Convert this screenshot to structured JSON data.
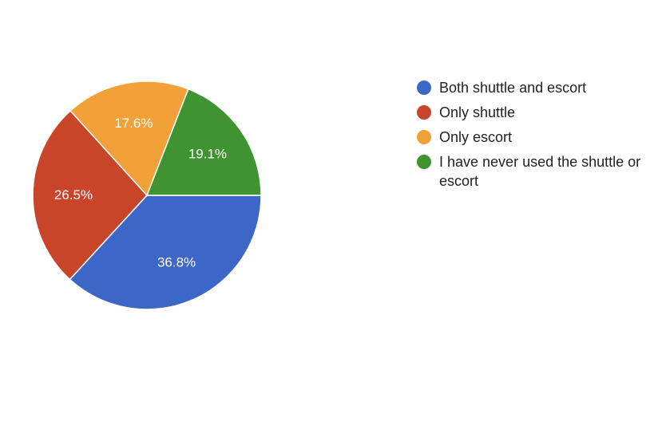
{
  "chart_data": {
    "type": "pie",
    "title": "",
    "series": [
      {
        "values": [
          36.8,
          26.5,
          17.6,
          19.1
        ]
      }
    ],
    "categories": [
      "Both shuttle and escort",
      "Only shuttle",
      "Only escort",
      "I have never used the shuttle or escort"
    ],
    "slices": [
      {
        "label": "Both shuttle and escort",
        "value": 36.8,
        "display": "36.8%",
        "color": "#3d67c7"
      },
      {
        "label": "Only shuttle",
        "value": 26.5,
        "display": "26.5%",
        "color": "#c9452a"
      },
      {
        "label": "Only escort",
        "value": 17.6,
        "display": "17.6%",
        "color": "#f2a038"
      },
      {
        "label": "I have never used the shuttle or escort",
        "value": 19.1,
        "display": "19.1%",
        "color": "#3f9331"
      }
    ],
    "legend_position": "right",
    "start_direction": "east, clockwise"
  }
}
